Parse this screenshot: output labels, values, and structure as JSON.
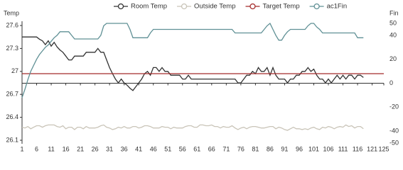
{
  "chart_data": {
    "type": "line",
    "y_label": "Temp",
    "y2_label": "Fin",
    "x": [
      1,
      2,
      3,
      4,
      5,
      6,
      7,
      8,
      9,
      10,
      11,
      12,
      13,
      14,
      15,
      16,
      17,
      18,
      19,
      20,
      21,
      22,
      23,
      24,
      25,
      26,
      27,
      28,
      29,
      30,
      31,
      32,
      33,
      34,
      35,
      36,
      37,
      38,
      39,
      40,
      41,
      42,
      43,
      44,
      45,
      46,
      47,
      48,
      49,
      50,
      51,
      52,
      53,
      54,
      55,
      56,
      57,
      58,
      59,
      60,
      61,
      62,
      63,
      64,
      65,
      66,
      67,
      68,
      69,
      70,
      71,
      72,
      73,
      74,
      75,
      76,
      77,
      78,
      79,
      80,
      81,
      82,
      83,
      84,
      85,
      86,
      87,
      88,
      89,
      90,
      91,
      92,
      93,
      94,
      95,
      96,
      97,
      98,
      99,
      100,
      101,
      102,
      103,
      104,
      105,
      106,
      107,
      108,
      109,
      110,
      111,
      112,
      113,
      114,
      115,
      116,
      117,
      118
    ],
    "series": [
      {
        "name": "Room Temp",
        "color": "#333333",
        "values": [
          27.45,
          27.45,
          27.45,
          27.45,
          27.45,
          27.45,
          27.42,
          27.4,
          27.35,
          27.4,
          27.33,
          27.38,
          27.32,
          27.28,
          27.25,
          27.2,
          27.15,
          27.15,
          27.2,
          27.2,
          27.2,
          27.2,
          27.25,
          27.25,
          27.25,
          27.25,
          27.3,
          27.25,
          27.25,
          27.15,
          27.05,
          26.97,
          26.9,
          26.85,
          26.9,
          26.85,
          26.82,
          26.78,
          26.75,
          26.8,
          26.85,
          26.9,
          26.97,
          27,
          26.95,
          27.05,
          27.05,
          27,
          27.05,
          27,
          27,
          26.95,
          26.95,
          26.95,
          26.95,
          26.9,
          26.9,
          26.95,
          26.9,
          26.9,
          26.9,
          26.9,
          26.9,
          26.9,
          26.9,
          26.9,
          26.9,
          26.9,
          26.9,
          26.9,
          26.9,
          26.9,
          26.9,
          26.9,
          26.85,
          26.85,
          26.9,
          26.95,
          26.95,
          27,
          26.97,
          27.05,
          27,
          27,
          27.05,
          26.95,
          27.05,
          26.95,
          26.9,
          26.9,
          26.9,
          26.85,
          26.9,
          26.9,
          26.95,
          26.95,
          27,
          27,
          27.05,
          27,
          27.03,
          26.95,
          26.9,
          26.9,
          26.85,
          26.9,
          26.85,
          26.9,
          26.95,
          26.9,
          26.95,
          26.9,
          26.95,
          26.95,
          26.9,
          26.95,
          26.95,
          26.92
        ]
      },
      {
        "name": "Outside Temp",
        "color": "#c9c4b8",
        "values": [
          26.27,
          26.26,
          26.28,
          26.25,
          26.27,
          26.29,
          26.29,
          26.27,
          26.29,
          26.3,
          26.3,
          26.3,
          26.28,
          26.27,
          26.29,
          26.25,
          26.27,
          26.27,
          26.24,
          26.27,
          26.27,
          26.25,
          26.28,
          26.26,
          26.26,
          26.26,
          26.27,
          26.29,
          26.3,
          26.27,
          26.26,
          26.24,
          26.25,
          26.27,
          26.26,
          26.28,
          26.26,
          26.26,
          26.28,
          26.28,
          26.26,
          26.27,
          26.29,
          26.29,
          26.28,
          26.26,
          26.26,
          26.26,
          26.28,
          26.27,
          26.27,
          26.25,
          26.27,
          26.26,
          26.26,
          26.26,
          26.28,
          26.29,
          26.29,
          26.27,
          26.27,
          26.3,
          26.3,
          26.29,
          26.29,
          26.3,
          26.28,
          26.28,
          26.26,
          26.28,
          26.27,
          26.27,
          26.29,
          26.26,
          26.24,
          26.26,
          26.27,
          26.25,
          26.27,
          26.28,
          26.28,
          26.27,
          26.26,
          26.26,
          26.27,
          26.28,
          26.28,
          26.25,
          26.27,
          26.26,
          26.24,
          26.23,
          26.25,
          26.27,
          26.25,
          26.25,
          26.24,
          26.25,
          26.24,
          26.26,
          26.27,
          26.25,
          26.24,
          26.27,
          26.26,
          26.28,
          26.27,
          26.25,
          26.27,
          26.28,
          26.27,
          26.3,
          26.28,
          26.29,
          26.26,
          26.28,
          26.28,
          26.25
        ]
      },
      {
        "name": "Target Temp",
        "color": "#a52a2a",
        "x": [
          1,
          125
        ],
        "values": [
          26.97,
          26.97
        ]
      },
      {
        "name": "ac1Fin",
        "color": "#5f9095",
        "axis": "y2",
        "values": [
          -12,
          -5,
          3,
          10,
          15,
          20,
          24,
          27,
          30,
          32,
          35,
          38,
          40,
          43,
          43,
          43,
          43,
          40,
          37,
          37,
          37,
          37,
          37,
          37,
          37,
          37,
          37,
          40,
          48,
          50,
          50,
          50,
          50,
          50,
          50,
          50,
          50,
          45,
          38,
          38,
          38,
          38,
          38,
          38,
          42,
          45,
          45,
          45,
          45,
          45,
          45,
          45,
          45,
          45,
          45,
          45,
          45,
          45,
          45,
          45,
          45,
          45,
          45,
          45,
          45,
          45,
          45,
          45,
          45,
          45,
          45,
          45,
          45,
          42,
          42,
          42,
          42,
          42,
          42,
          42,
          42,
          42,
          42,
          45,
          48,
          50,
          45,
          40,
          36,
          36,
          40,
          43,
          45,
          45,
          45,
          45,
          45,
          45,
          48,
          50,
          50,
          47,
          45,
          42,
          42,
          42,
          42,
          42,
          42,
          42,
          42,
          42,
          42,
          42,
          42,
          38,
          38,
          38
        ]
      }
    ],
    "xlim": [
      1,
      125
    ],
    "xticks": [
      1,
      6,
      11,
      16,
      21,
      26,
      31,
      36,
      41,
      46,
      51,
      56,
      61,
      66,
      71,
      76,
      81,
      86,
      91,
      96,
      101,
      106,
      111,
      116,
      121,
      125
    ],
    "ylim": [
      26.1,
      27.6
    ],
    "yticks": [
      26.1,
      26.4,
      26.7,
      27,
      27.3,
      27.6
    ],
    "y2lim": [
      -50,
      50
    ],
    "y2ticks": [
      -50,
      -40,
      -20,
      0,
      20,
      40,
      50
    ]
  }
}
